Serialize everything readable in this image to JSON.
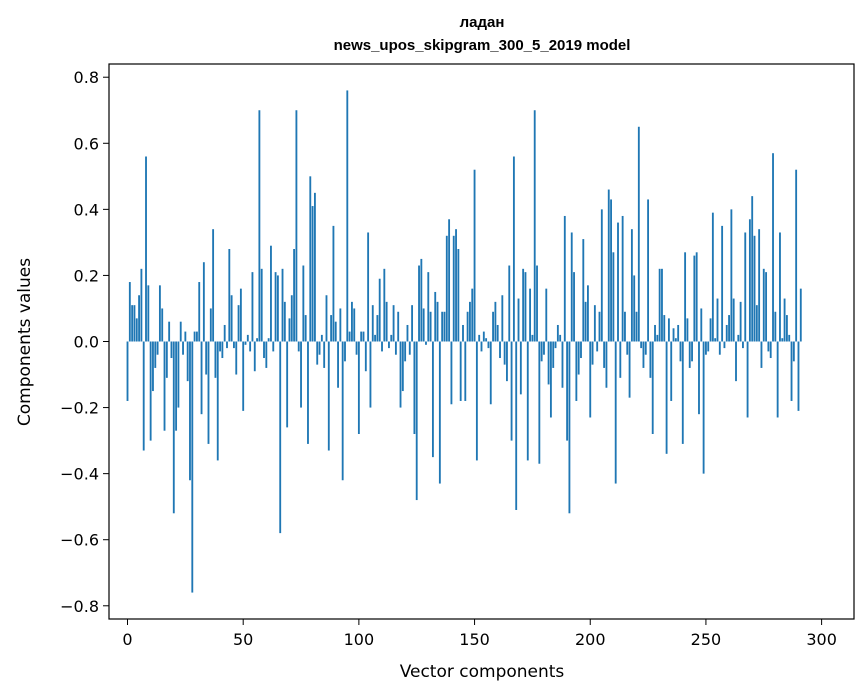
{
  "chart_data": {
    "type": "bar",
    "title": "ладан",
    "subtitle": "news_upos_skipgram_300_5_2019 model",
    "xlabel": "Vector components",
    "ylabel": "Components values",
    "xlim": [
      -8,
      314
    ],
    "ylim": [
      -0.84,
      0.84
    ],
    "xticks": [
      0,
      50,
      100,
      150,
      200,
      250,
      300
    ],
    "xtick_labels": [
      "0",
      "50",
      "100",
      "150",
      "200",
      "250",
      "300"
    ],
    "yticks": [
      0.8,
      0.6,
      0.4,
      0.2,
      0.0,
      -0.2,
      -0.4,
      -0.6,
      -0.8
    ],
    "ytick_labels": [
      "0.8",
      "0.6",
      "0.4",
      "0.2",
      "0.0",
      "−0.2",
      "−0.4",
      "−0.6",
      "−0.8"
    ],
    "bar_color": "#1f77b4",
    "values": [
      -0.18,
      0.18,
      0.11,
      0.11,
      0.07,
      0.14,
      0.22,
      -0.33,
      0.56,
      0.17,
      -0.3,
      -0.15,
      -0.08,
      -0.04,
      0.17,
      0.1,
      -0.27,
      -0.11,
      0.06,
      -0.05,
      -0.52,
      -0.27,
      -0.2,
      0.06,
      -0.04,
      0.03,
      -0.12,
      -0.42,
      -0.76,
      0.03,
      0.03,
      0.18,
      -0.22,
      0.24,
      -0.1,
      -0.31,
      0.1,
      0.34,
      -0.11,
      -0.36,
      -0.03,
      -0.05,
      0.05,
      -0.02,
      0.28,
      0.14,
      -0.02,
      -0.1,
      0.11,
      0.16,
      -0.21,
      -0.01,
      0.02,
      -0.03,
      0.21,
      -0.09,
      0.01,
      0.7,
      0.22,
      -0.05,
      -0.08,
      0.01,
      0.29,
      -0.03,
      0.21,
      0.2,
      -0.58,
      0.22,
      0.12,
      -0.26,
      0.07,
      0.14,
      0.28,
      0.7,
      -0.03,
      -0.2,
      0.23,
      0.08,
      -0.31,
      0.5,
      0.41,
      0.45,
      -0.07,
      -0.04,
      0.02,
      -0.08,
      0.14,
      -0.33,
      0.08,
      0.35,
      0.06,
      -0.14,
      0.1,
      -0.42,
      -0.06,
      0.76,
      0.03,
      0.12,
      0.1,
      -0.04,
      -0.28,
      0.03,
      0.03,
      -0.09,
      0.33,
      -0.2,
      0.11,
      0.02,
      0.08,
      0.19,
      -0.03,
      0.22,
      0.12,
      -0.02,
      0.02,
      0.11,
      -0.04,
      0.09,
      -0.2,
      -0.15,
      -0.06,
      0.05,
      -0.04,
      0.11,
      -0.28,
      -0.48,
      0.23,
      0.25,
      0.1,
      -0.01,
      0.21,
      0.09,
      -0.35,
      0.15,
      0.12,
      -0.43,
      0.09,
      0.09,
      0.32,
      0.37,
      -0.19,
      0.32,
      0.34,
      0.28,
      -0.18,
      0.05,
      -0.18,
      0.09,
      0.12,
      0.16,
      0.52,
      -0.36,
      0.02,
      -0.03,
      0.03,
      0.01,
      -0.02,
      -0.19,
      0.09,
      0.12,
      0.05,
      -0.05,
      0.14,
      -0.07,
      -0.12,
      0.23,
      -0.3,
      0.56,
      -0.51,
      0.13,
      -0.16,
      0.22,
      0.21,
      -0.36,
      0.16,
      0.02,
      0.7,
      0.23,
      -0.37,
      -0.06,
      -0.04,
      0.16,
      -0.13,
      -0.23,
      -0.08,
      -0.02,
      0.05,
      0.02,
      -0.14,
      0.38,
      -0.3,
      -0.52,
      0.33,
      0.21,
      -0.18,
      -0.1,
      -0.05,
      0.31,
      0.12,
      0.17,
      -0.23,
      -0.07,
      0.11,
      -0.03,
      0.09,
      0.4,
      -0.08,
      -0.14,
      0.46,
      0.43,
      0.27,
      -0.43,
      0.36,
      -0.11,
      0.38,
      0.09,
      -0.04,
      -0.17,
      0.34,
      0.2,
      0.09,
      0.65,
      -0.02,
      -0.08,
      -0.04,
      0.43,
      -0.11,
      -0.28,
      0.05,
      0.02,
      0.22,
      0.22,
      0.08,
      -0.34,
      0.07,
      -0.18,
      0.04,
      0.01,
      0.05,
      -0.06,
      -0.31,
      0.27,
      0.07,
      -0.08,
      -0.06,
      0.26,
      0.27,
      -0.22,
      0.1,
      -0.4,
      -0.04,
      -0.03,
      0.07,
      0.39,
      0.01,
      0.13,
      -0.04,
      0.35,
      -0.02,
      0.05,
      0.08,
      0.4,
      0.13,
      -0.12,
      0.02,
      0.12,
      -0.02,
      0.33,
      -0.23,
      0.37,
      0.44,
      0.32,
      0.11,
      0.34,
      -0.08,
      0.22,
      0.21,
      -0.03,
      -0.05,
      0.57,
      0.09,
      -0.23,
      0.33,
      0.01,
      0.13,
      0.08,
      0.02,
      -0.18,
      -0.06,
      0.52,
      -0.21,
      0.16
    ]
  }
}
